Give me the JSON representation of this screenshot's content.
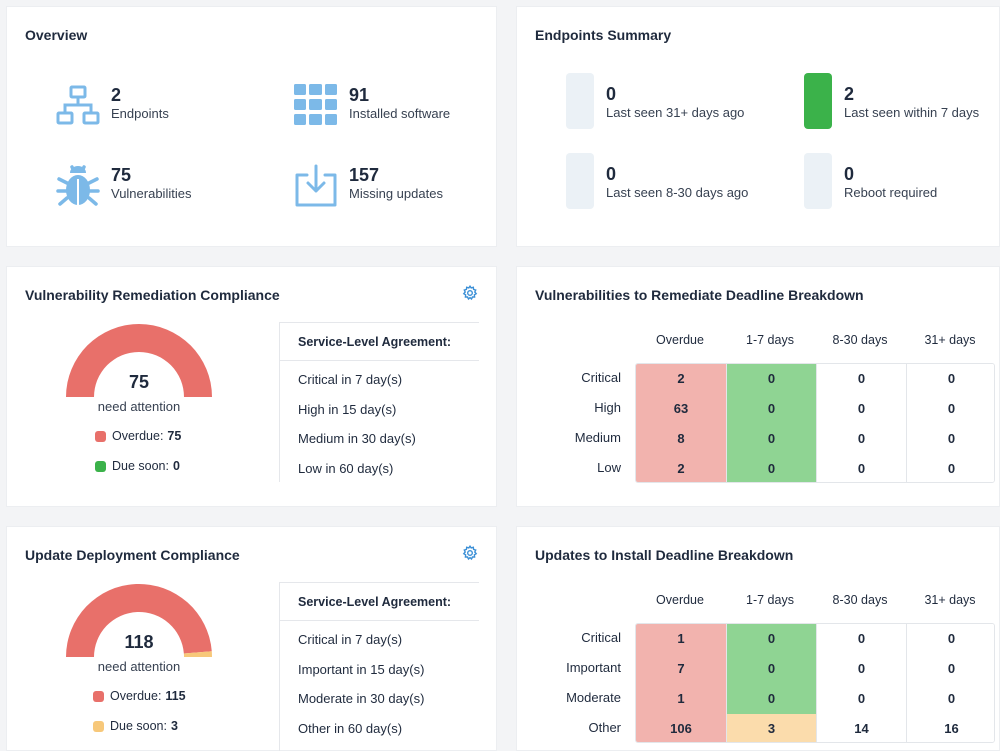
{
  "overview": {
    "title": "Overview",
    "items": [
      {
        "value": "2",
        "label": "Endpoints",
        "icon": "network-icon"
      },
      {
        "value": "91",
        "label": "Installed software",
        "icon": "grid-apps-icon"
      },
      {
        "value": "75",
        "label": "Vulnerabilities",
        "icon": "bug-icon"
      },
      {
        "value": "157",
        "label": "Missing updates",
        "icon": "download-tray-icon"
      }
    ]
  },
  "endpoints_summary": {
    "title": "Endpoints Summary",
    "items": [
      {
        "value": "0",
        "label": "Last seen 31+ days ago",
        "color": "#ebf1f6"
      },
      {
        "value": "2",
        "label": "Last seen within 7 days",
        "color": "#3bb24a"
      },
      {
        "value": "0",
        "label": "Last seen 8-30 days ago",
        "color": "#ebf1f6"
      },
      {
        "value": "0",
        "label": "Reboot required",
        "color": "#ebf1f6"
      }
    ]
  },
  "vuln_compliance": {
    "title": "Vulnerability Remediation Compliance",
    "gauge_value": "75",
    "gauge_sub": "need attention",
    "overdue_label": "Overdue:",
    "overdue_value": "75",
    "due_soon_label": "Due soon:",
    "due_soon_value": "0",
    "overdue_fraction": 1.0,
    "sla_title": "Service-Level Agreement:",
    "sla_rows": [
      "Critical in 7 day(s)",
      "High in 15 day(s)",
      "Medium in 30 day(s)",
      "Low in 60 day(s)"
    ]
  },
  "update_compliance": {
    "title": "Update Deployment Compliance",
    "gauge_value": "118",
    "gauge_sub": "need attention",
    "overdue_label": "Overdue:",
    "overdue_value": "115",
    "due_soon_label": "Due soon:",
    "due_soon_value": "3",
    "overdue_fraction": 0.975,
    "sla_title": "Service-Level Agreement:",
    "sla_rows": [
      "Critical in 7 day(s)",
      "Important in 15 day(s)",
      "Moderate in 30 day(s)",
      "Other in 60 day(s)"
    ]
  },
  "vuln_breakdown": {
    "title": "Vulnerabilities to Remediate Deadline Breakdown",
    "columns": [
      "Overdue",
      "1-7 days",
      "8-30 days",
      "31+ days"
    ],
    "rows": [
      {
        "label": "Critical",
        "values": [
          "2",
          "0",
          "0",
          "0"
        ]
      },
      {
        "label": "High",
        "values": [
          "63",
          "0",
          "0",
          "0"
        ]
      },
      {
        "label": "Medium",
        "values": [
          "8",
          "0",
          "0",
          "0"
        ]
      },
      {
        "label": "Low",
        "values": [
          "2",
          "0",
          "0",
          "0"
        ]
      }
    ]
  },
  "update_breakdown": {
    "title": "Updates to Install Deadline Breakdown",
    "columns": [
      "Overdue",
      "1-7 days",
      "8-30 days",
      "31+ days"
    ],
    "rows": [
      {
        "label": "Critical",
        "values": [
          "1",
          "0",
          "0",
          "0"
        ]
      },
      {
        "label": "Important",
        "values": [
          "7",
          "0",
          "0",
          "0"
        ]
      },
      {
        "label": "Moderate",
        "values": [
          "1",
          "0",
          "0",
          "0"
        ]
      },
      {
        "label": "Other",
        "values": [
          "106",
          "3",
          "14",
          "16"
        ]
      }
    ]
  },
  "colors": {
    "overdue": "#e8706a",
    "overdue_cell": "#f2b3ae",
    "due_soon_green": "#3bb24a",
    "green_cell": "#8fd493",
    "due_soon_orange": "#f7c87a",
    "orange_cell": "#fbdcac",
    "icon_blue": "#7cb9e8"
  }
}
